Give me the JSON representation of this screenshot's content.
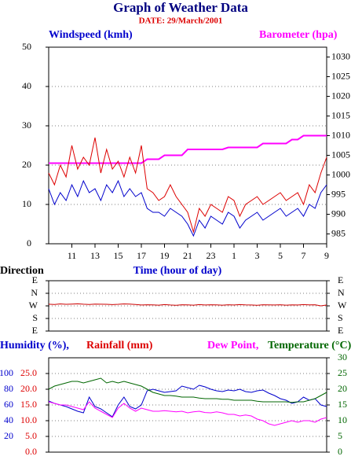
{
  "chart_data": [
    {
      "type": "line",
      "title": "Graph of Weather Data",
      "subtitle": "DATE: 29/March/2001",
      "xlabel": "Time (hour of day)",
      "x": [
        0,
        0.5,
        1,
        1.5,
        2,
        2.5,
        3,
        3.5,
        4,
        4.5,
        5,
        5.5,
        6,
        6.5,
        7,
        7.5,
        8,
        8.5,
        9,
        9.5,
        10,
        10.5,
        11,
        11.5,
        12,
        12.5,
        13,
        13.5,
        14,
        14.5,
        15,
        15.5,
        16,
        16.5,
        17,
        17.5,
        18,
        18.5,
        19,
        19.5,
        20,
        20.5,
        21,
        21.5,
        22,
        22.5,
        23,
        23.5,
        24
      ],
      "xlim": [
        0,
        24
      ],
      "xticks": [
        {
          "value": 2,
          "label": "11"
        },
        {
          "value": 4,
          "label": "13"
        },
        {
          "value": 6,
          "label": "15"
        },
        {
          "value": 8,
          "label": "17"
        },
        {
          "value": 10,
          "label": "19"
        },
        {
          "value": 12,
          "label": "21"
        },
        {
          "value": 14,
          "label": "23"
        },
        {
          "value": 16,
          "label": "1"
        },
        {
          "value": 18,
          "label": "3"
        },
        {
          "value": 20,
          "label": "5"
        },
        {
          "value": 22,
          "label": "7"
        },
        {
          "value": 24,
          "label": "9"
        }
      ],
      "ylim": [
        0,
        50
      ],
      "yticks": [
        0,
        10,
        20,
        30,
        40,
        50
      ],
      "y2lim": [
        982.5,
        1032.5
      ],
      "y2ticks": [
        985,
        990,
        995,
        1000,
        1005,
        1010,
        1015,
        1020,
        1025,
        1030
      ],
      "grid": true,
      "series": [
        {
          "name": "Windspeed (kmh)",
          "color": "#0000cc",
          "axis": "y",
          "values": [
            14,
            10,
            13,
            11,
            15,
            12,
            16,
            13,
            14,
            11,
            15,
            13,
            16,
            12,
            14,
            12,
            13,
            9,
            8,
            8,
            7,
            9,
            8,
            7,
            5,
            2,
            6,
            4,
            7,
            6,
            5,
            8,
            7,
            4,
            6,
            7,
            8,
            6,
            7,
            8,
            9,
            7,
            8,
            9,
            7,
            10,
            9,
            13,
            15
          ]
        },
        {
          "name": "Barometer (hpa)",
          "color": "#ff00ff",
          "axis": "y2",
          "values": [
            1003,
            1003,
            1003,
            1003,
            1003,
            1003,
            1003,
            1003,
            1003,
            1003,
            1003,
            1003,
            1003,
            1003,
            1003,
            1003,
            1003,
            1004,
            1004,
            1004,
            1005,
            1005,
            1005,
            1005,
            1006.5,
            1006.5,
            1006.5,
            1006.5,
            1006.5,
            1006.5,
            1006.5,
            1007,
            1007,
            1007,
            1007,
            1007,
            1007,
            1008,
            1008,
            1008,
            1008,
            1008,
            1009,
            1009,
            1010,
            1010,
            1010,
            1010,
            1010
          ]
        },
        {
          "color": "#dd0000",
          "axis": "y",
          "values": [
            18,
            15,
            20,
            17,
            25,
            19,
            22,
            20,
            27,
            18,
            24,
            19,
            21,
            17,
            22,
            18,
            25,
            14,
            13,
            11,
            12,
            15,
            12,
            10,
            8,
            3,
            9,
            7,
            10,
            9,
            8,
            12,
            11,
            7,
            10,
            11,
            12,
            10,
            11,
            12,
            13,
            11,
            12,
            13,
            10,
            15,
            13,
            18,
            22
          ]
        }
      ]
    },
    {
      "type": "line",
      "ylabel": "Direction",
      "x": [
        0,
        0.5,
        1,
        1.5,
        2,
        2.5,
        3,
        3.5,
        4,
        4.5,
        5,
        5.5,
        6,
        6.5,
        7,
        7.5,
        8,
        8.5,
        9,
        9.5,
        10,
        10.5,
        11,
        11.5,
        12,
        12.5,
        13,
        13.5,
        14,
        14.5,
        15,
        15.5,
        16,
        16.5,
        17,
        17.5,
        18,
        18.5,
        19,
        19.5,
        20,
        20.5,
        21,
        21.5,
        22,
        22.5,
        23,
        23.5,
        24
      ],
      "xlim": [
        0,
        24
      ],
      "ylim": [
        90,
        450
      ],
      "yticks": [
        {
          "value": 90,
          "label": "E"
        },
        {
          "value": 180,
          "label": "S"
        },
        {
          "value": 270,
          "label": "W"
        },
        {
          "value": 360,
          "label": "N"
        },
        {
          "value": 450,
          "label": "E"
        }
      ],
      "grid": true,
      "series": [
        {
          "color": "#cc0000",
          "axis": "y",
          "values": [
            282,
            280,
            284,
            281,
            283,
            285,
            282,
            280,
            283,
            282,
            281,
            279,
            281,
            284,
            283,
            280,
            276,
            278,
            277,
            275,
            279,
            276,
            274,
            278,
            277,
            275,
            279,
            276,
            278,
            277,
            275,
            278,
            276,
            279,
            277,
            276,
            274,
            278,
            277,
            276,
            278,
            275,
            277,
            276,
            279,
            277,
            278,
            270,
            276
          ]
        }
      ]
    },
    {
      "type": "line",
      "y3label": "Rainfall (mm)",
      "x": [
        0,
        0.5,
        1,
        1.5,
        2,
        2.5,
        3,
        3.5,
        4,
        4.5,
        5,
        5.5,
        6,
        6.5,
        7,
        7.5,
        8,
        8.5,
        9,
        9.5,
        10,
        10.5,
        11,
        11.5,
        12,
        12.5,
        13,
        13.5,
        14,
        14.5,
        15,
        15.5,
        16,
        16.5,
        17,
        17.5,
        18,
        18.5,
        19,
        19.5,
        20,
        20.5,
        21,
        21.5,
        22,
        22.5,
        23,
        23.5,
        24
      ],
      "xlim": [
        0,
        24
      ],
      "ylim": [
        0,
        120
      ],
      "yticks": [
        20,
        40,
        60,
        80,
        100
      ],
      "ytick_color": "#0000cc",
      "y3lim": [
        0,
        30
      ],
      "y3ticks": [
        {
          "value": 0,
          "label": "0.0"
        },
        {
          "value": 5,
          "label": "5.0"
        },
        {
          "value": 10,
          "label": "10.0"
        },
        {
          "value": 15,
          "label": "15.0"
        },
        {
          "value": 20,
          "label": "20.0"
        },
        {
          "value": 25,
          "label": "25.0"
        }
      ],
      "y3tick_color": "#dd0000",
      "y2lim": [
        0,
        30
      ],
      "y2ticks": [
        0,
        5,
        10,
        15,
        20,
        25,
        30
      ],
      "y2tick_color": "#006600",
      "grid": true,
      "series": [
        {
          "name": "Humidity (%),",
          "color": "#0000cc",
          "axis": "y",
          "values": [
            65,
            62,
            60,
            58,
            55,
            52,
            50,
            70,
            58,
            55,
            50,
            45,
            60,
            70,
            58,
            55,
            60,
            78,
            80,
            78,
            76,
            77,
            78,
            84,
            82,
            80,
            85,
            83,
            80,
            78,
            77,
            79,
            78,
            80,
            77,
            76,
            78,
            79,
            75,
            72,
            68,
            66,
            62,
            64,
            70,
            66,
            68,
            60,
            58
          ]
        },
        {
          "name": "Dew Point,",
          "color": "#ff00ff",
          "axis": "y2",
          "values": [
            16,
            15.5,
            15,
            15,
            14.5,
            14,
            13.5,
            16,
            14,
            13,
            12,
            11,
            14,
            15.5,
            14,
            13,
            14,
            13.5,
            13,
            13,
            13.2,
            13,
            12.8,
            13,
            12.5,
            12.8,
            13,
            12.6,
            12.5,
            12.8,
            12.5,
            12,
            12,
            11.5,
            11.8,
            11.5,
            10.5,
            10,
            9,
            8.5,
            9,
            9.5,
            10,
            9.5,
            10,
            10,
            9.5,
            10.5,
            11
          ]
        },
        {
          "name": "Temperature (°C)",
          "color": "#006600",
          "axis": "y2",
          "values": [
            20,
            21,
            21.5,
            22,
            22.5,
            22.5,
            22,
            22.5,
            23,
            23.5,
            22,
            22.5,
            22,
            22.5,
            22,
            21.5,
            21,
            20,
            19,
            18.5,
            18,
            18,
            17.8,
            17.5,
            17.5,
            17.5,
            17.2,
            17,
            17,
            17,
            16.8,
            16.8,
            16.5,
            16.5,
            16.5,
            16.5,
            16.2,
            16,
            16,
            16,
            16,
            16,
            15.8,
            16,
            16,
            16.5,
            17,
            18,
            19
          ]
        }
      ]
    }
  ]
}
